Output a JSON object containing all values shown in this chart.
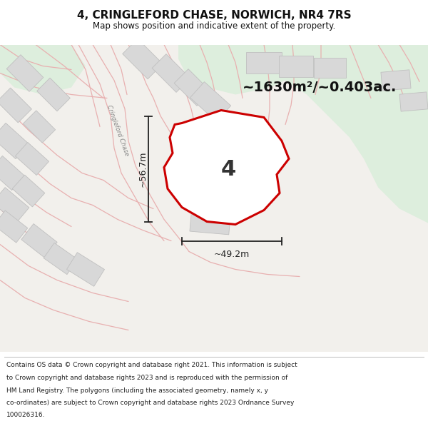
{
  "title": "4, CRINGLEFORD CHASE, NORWICH, NR4 7RS",
  "subtitle": "Map shows position and indicative extent of the property.",
  "footer_lines": [
    "Contains OS data © Crown copyright and database right 2021. This information is subject",
    "to Crown copyright and database rights 2023 and is reproduced with the permission of",
    "HM Land Registry. The polygons (including the associated geometry, namely x, y",
    "co-ordinates) are subject to Crown copyright and database rights 2023 Ordnance Survey",
    "100026316."
  ],
  "area_label": "~1630m²/~0.403ac.",
  "plot_number": "4",
  "dim_width": "~49.2m",
  "dim_height": "~56.7m",
  "street_label": "Cringleford Chase",
  "map_bg": "#f2f0ec",
  "green_color": "#ddeedd",
  "road_color": "#e8b0b0",
  "building_fill": "#d8d8d8",
  "building_edge": "#c0c0c0",
  "plot_fill": "#ffffff",
  "plot_edge": "#cc0000",
  "dim_color": "#222222",
  "text_color": "#111111",
  "title_fontsize": 11,
  "subtitle_fontsize": 8.5,
  "footer_fontsize": 6.5,
  "area_fontsize": 14,
  "plot_num_fontsize": 22,
  "dim_fontsize": 9,
  "street_fontsize": 6
}
